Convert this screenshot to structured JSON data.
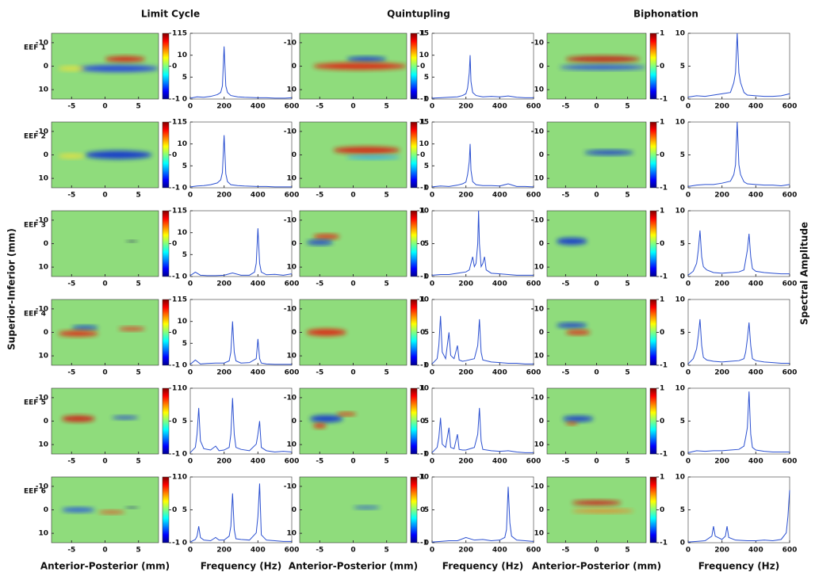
{
  "columns": [
    "Limit Cycle",
    "Quintupling",
    "Biphonation"
  ],
  "rows": [
    "EEF 1",
    "EEF 2",
    "EEF 3",
    "EEF 4",
    "EEF 5",
    "EEF 6"
  ],
  "labels": {
    "y": "Superior-Inferior (mm)",
    "right": "Spectral Amplitude",
    "heatmap_x": "Anterior-Posterior (mm)",
    "spectrum_x": "Frequency (Hz)"
  },
  "heatmap": {
    "xlim": [
      -8,
      8
    ],
    "xticks": [
      -5,
      0,
      5
    ],
    "ylim": [
      -14,
      14
    ],
    "yticks": [
      -10,
      0,
      10
    ],
    "colorbar_lim": [
      -1,
      1
    ],
    "colorbar_ticks": [
      -1,
      0,
      1
    ]
  },
  "chart_data": [
    {
      "type": "line",
      "color": "#2a4fd0",
      "xlim": [
        0,
        600
      ],
      "xticks": [
        0,
        200,
        400,
        600
      ],
      "ylim": [
        0,
        15
      ],
      "yticks": [
        0,
        5,
        10,
        15
      ],
      "x": [
        0,
        40,
        80,
        120,
        160,
        180,
        190,
        200,
        210,
        220,
        240,
        280,
        320,
        400,
        450,
        500,
        560,
        600
      ],
      "values": [
        0.2,
        0.5,
        0.4,
        0.6,
        1,
        1.5,
        3,
        12,
        3,
        1.5,
        0.8,
        0.5,
        0.4,
        0.3,
        0.3,
        0.2,
        0.2,
        0.3
      ]
    },
    {
      "type": "line",
      "color": "#2a4fd0",
      "xlim": [
        0,
        600
      ],
      "xticks": [
        0,
        200,
        400,
        600
      ],
      "ylim": [
        0,
        15
      ],
      "yticks": [
        0,
        5,
        10,
        15
      ],
      "x": [
        0,
        40,
        80,
        120,
        160,
        180,
        190,
        200,
        210,
        220,
        240,
        280,
        320,
        400,
        450,
        500,
        560,
        600
      ],
      "values": [
        0.2,
        0.4,
        0.5,
        0.7,
        1.1,
        1.8,
        3.5,
        12,
        3.2,
        1.4,
        0.7,
        0.5,
        0.4,
        0.3,
        0.3,
        0.2,
        0.2,
        0.2
      ]
    },
    {
      "type": "line",
      "color": "#2a4fd0",
      "xlim": [
        0,
        600
      ],
      "xticks": [
        0,
        200,
        400,
        600
      ],
      "ylim": [
        0,
        15
      ],
      "yticks": [
        0,
        5,
        10,
        15
      ],
      "x": [
        0,
        30,
        60,
        100,
        150,
        200,
        250,
        300,
        350,
        380,
        390,
        400,
        410,
        420,
        450,
        500,
        550,
        600
      ],
      "values": [
        0.2,
        1,
        0.3,
        0.2,
        0.2,
        0.3,
        0.8,
        0.3,
        0.3,
        1,
        3,
        11,
        3,
        1,
        0.4,
        0.5,
        0.3,
        0.6
      ]
    },
    {
      "type": "line",
      "color": "#2a4fd0",
      "xlim": [
        0,
        600
      ],
      "xticks": [
        0,
        200,
        400,
        600
      ],
      "ylim": [
        0,
        15
      ],
      "yticks": [
        0,
        5,
        10,
        15
      ],
      "x": [
        0,
        30,
        60,
        100,
        150,
        200,
        230,
        240,
        250,
        260,
        270,
        300,
        350,
        390,
        400,
        410,
        420,
        450,
        500,
        600
      ],
      "values": [
        0.2,
        1.2,
        0.3,
        0.4,
        0.5,
        0.5,
        1,
        3,
        10,
        3,
        1,
        0.5,
        0.6,
        1.5,
        6,
        1.5,
        0.5,
        0.3,
        0.2,
        0.2
      ]
    },
    {
      "type": "line",
      "color": "#2a4fd0",
      "xlim": [
        0,
        600
      ],
      "xticks": [
        0,
        200,
        400,
        600
      ],
      "ylim": [
        0,
        10
      ],
      "yticks": [
        0,
        5,
        10
      ],
      "x": [
        0,
        30,
        40,
        50,
        60,
        80,
        120,
        150,
        170,
        200,
        230,
        240,
        250,
        260,
        270,
        300,
        350,
        390,
        400,
        410,
        420,
        450,
        500,
        550,
        600
      ],
      "values": [
        0.2,
        1,
        3,
        7,
        2,
        0.8,
        0.6,
        1.2,
        0.5,
        0.6,
        1,
        3,
        8.5,
        3,
        1,
        0.7,
        0.5,
        1.5,
        3,
        5,
        1,
        0.5,
        0.3,
        0.4,
        0.3
      ]
    },
    {
      "type": "line",
      "color": "#2a4fd0",
      "xlim": [
        0,
        600
      ],
      "xticks": [
        0,
        200,
        400,
        600
      ],
      "ylim": [
        0,
        10
      ],
      "yticks": [
        0,
        5,
        10
      ],
      "x": [
        0,
        30,
        40,
        50,
        60,
        80,
        120,
        150,
        170,
        200,
        230,
        240,
        250,
        260,
        270,
        300,
        350,
        390,
        400,
        410,
        420,
        450,
        500,
        550,
        600
      ],
      "values": [
        0.1,
        0.5,
        1,
        2.5,
        0.8,
        0.4,
        0.3,
        0.8,
        0.4,
        0.4,
        1,
        2.5,
        7.5,
        2,
        0.6,
        0.5,
        0.4,
        1.5,
        4,
        9,
        1.2,
        0.4,
        0.3,
        0.2,
        0.2
      ]
    },
    {
      "type": "line",
      "color": "#2a4fd0",
      "xlim": [
        0,
        600
      ],
      "xticks": [
        0,
        200,
        400,
        600
      ],
      "ylim": [
        0,
        15
      ],
      "yticks": [
        0,
        5,
        10,
        15
      ],
      "x": [
        0,
        50,
        100,
        150,
        180,
        200,
        210,
        220,
        225,
        230,
        240,
        260,
        300,
        350,
        400,
        450,
        500,
        550,
        600
      ],
      "values": [
        0.2,
        0.3,
        0.4,
        0.5,
        0.8,
        1.2,
        2.5,
        6,
        10,
        4,
        1.5,
        0.8,
        0.5,
        0.6,
        0.5,
        0.7,
        0.4,
        0.3,
        0.3
      ]
    },
    {
      "type": "line",
      "color": "#2a4fd0",
      "xlim": [
        0,
        600
      ],
      "xticks": [
        0,
        200,
        400,
        600
      ],
      "ylim": [
        0,
        15
      ],
      "yticks": [
        0,
        5,
        10,
        15
      ],
      "x": [
        0,
        50,
        100,
        150,
        180,
        200,
        210,
        220,
        225,
        230,
        240,
        260,
        300,
        350,
        400,
        450,
        500,
        550,
        600
      ],
      "values": [
        0.2,
        0.4,
        0.3,
        0.6,
        0.9,
        1.3,
        3,
        6,
        10,
        4,
        1.4,
        0.7,
        0.5,
        0.5,
        0.4,
        0.9,
        0.3,
        0.3,
        0.2
      ]
    },
    {
      "type": "line",
      "color": "#2a4fd0",
      "xlim": [
        0,
        600
      ],
      "xticks": [
        0,
        200,
        400,
        600
      ],
      "ylim": [
        0,
        10
      ],
      "yticks": [
        0,
        5,
        10
      ],
      "x": [
        0,
        50,
        100,
        150,
        200,
        220,
        240,
        250,
        260,
        270,
        275,
        280,
        290,
        300,
        310,
        320,
        350,
        400,
        450,
        500,
        600
      ],
      "values": [
        0.2,
        0.3,
        0.3,
        0.5,
        0.7,
        1,
        3,
        1.5,
        2,
        5,
        10,
        5,
        1.5,
        2,
        3,
        1,
        0.5,
        0.4,
        0.3,
        0.2,
        0.2
      ]
    },
    {
      "type": "line",
      "color": "#2a4fd0",
      "xlim": [
        0,
        600
      ],
      "xticks": [
        0,
        200,
        400,
        600
      ],
      "ylim": [
        0,
        10
      ],
      "yticks": [
        0,
        5,
        10
      ],
      "x": [
        0,
        30,
        40,
        50,
        60,
        80,
        100,
        110,
        130,
        150,
        160,
        180,
        200,
        250,
        270,
        280,
        290,
        300,
        350,
        400,
        450,
        500,
        550,
        600
      ],
      "values": [
        0.2,
        1,
        3,
        7.5,
        2,
        1,
        5,
        1.5,
        1,
        3,
        0.8,
        0.6,
        0.7,
        1,
        3,
        7,
        2,
        0.8,
        0.5,
        0.4,
        0.3,
        0.3,
        0.2,
        0.2
      ]
    },
    {
      "type": "line",
      "color": "#2a4fd0",
      "xlim": [
        0,
        600
      ],
      "xticks": [
        0,
        200,
        400,
        600
      ],
      "ylim": [
        0,
        10
      ],
      "yticks": [
        0,
        5,
        10
      ],
      "x": [
        0,
        30,
        40,
        50,
        60,
        80,
        100,
        110,
        130,
        150,
        160,
        180,
        200,
        250,
        270,
        280,
        290,
        300,
        350,
        400,
        450,
        500,
        550,
        600
      ],
      "values": [
        0.2,
        1,
        2.5,
        5.5,
        1.5,
        1,
        4,
        1,
        0.8,
        3,
        0.7,
        0.6,
        0.6,
        1,
        3,
        7,
        2,
        0.7,
        0.5,
        0.4,
        0.5,
        0.3,
        0.2,
        0.2
      ]
    },
    {
      "type": "line",
      "color": "#2a4fd0",
      "xlim": [
        0,
        600
      ],
      "xticks": [
        0,
        200,
        400,
        600
      ],
      "ylim": [
        0,
        10
      ],
      "yticks": [
        0,
        5,
        10
      ],
      "x": [
        0,
        50,
        100,
        150,
        200,
        250,
        300,
        350,
        400,
        430,
        440,
        450,
        460,
        470,
        500,
        550,
        600
      ],
      "values": [
        0.1,
        0.2,
        0.3,
        0.3,
        0.8,
        0.4,
        0.5,
        0.3,
        0.4,
        0.8,
        2,
        8.5,
        3,
        1,
        0.4,
        0.3,
        0.2
      ]
    },
    {
      "type": "line",
      "color": "#2a4fd0",
      "xlim": [
        0,
        600
      ],
      "xticks": [
        0,
        200,
        400,
        600
      ],
      "ylim": [
        0,
        10
      ],
      "yticks": [
        0,
        5,
        10
      ],
      "x": [
        0,
        50,
        100,
        150,
        200,
        250,
        270,
        280,
        290,
        300,
        310,
        330,
        350,
        400,
        450,
        500,
        550,
        600
      ],
      "values": [
        0.3,
        0.5,
        0.4,
        0.6,
        0.8,
        1,
        2.5,
        4,
        10,
        4,
        2.5,
        1,
        0.6,
        0.5,
        0.4,
        0.4,
        0.5,
        0.8
      ]
    },
    {
      "type": "line",
      "color": "#2a4fd0",
      "xlim": [
        0,
        600
      ],
      "xticks": [
        0,
        200,
        400,
        600
      ],
      "ylim": [
        0,
        10
      ],
      "yticks": [
        0,
        5,
        10
      ],
      "x": [
        0,
        50,
        100,
        150,
        200,
        250,
        270,
        280,
        290,
        300,
        310,
        330,
        350,
        400,
        450,
        500,
        550,
        600
      ],
      "values": [
        0.2,
        0.4,
        0.5,
        0.5,
        0.7,
        1,
        2,
        3.5,
        10,
        3.5,
        2,
        0.9,
        0.6,
        0.5,
        0.4,
        0.4,
        0.3,
        0.5
      ]
    },
    {
      "type": "line",
      "color": "#2a4fd0",
      "xlim": [
        0,
        600
      ],
      "xticks": [
        0,
        200,
        400,
        600
      ],
      "ylim": [
        0,
        10
      ],
      "yticks": [
        0,
        5,
        10
      ],
      "x": [
        0,
        30,
        50,
        60,
        70,
        80,
        90,
        110,
        150,
        200,
        250,
        300,
        330,
        340,
        350,
        360,
        370,
        380,
        400,
        450,
        500,
        550,
        600
      ],
      "values": [
        0.2,
        0.8,
        2,
        4,
        7,
        3,
        1.5,
        1,
        0.6,
        0.5,
        0.6,
        0.7,
        1,
        2.5,
        4,
        6.5,
        3,
        1.2,
        0.8,
        0.6,
        0.5,
        0.4,
        0.4
      ]
    },
    {
      "type": "line",
      "color": "#2a4fd0",
      "xlim": [
        0,
        600
      ],
      "xticks": [
        0,
        200,
        400,
        600
      ],
      "ylim": [
        0,
        10
      ],
      "yticks": [
        0,
        5,
        10
      ],
      "x": [
        0,
        30,
        50,
        60,
        70,
        80,
        90,
        110,
        150,
        200,
        250,
        300,
        330,
        340,
        350,
        360,
        370,
        380,
        400,
        450,
        500,
        550,
        600
      ],
      "values": [
        0.2,
        1,
        2.5,
        4.5,
        7,
        3,
        1.2,
        0.8,
        0.6,
        0.5,
        0.6,
        0.7,
        1,
        2,
        4,
        6.5,
        3,
        1,
        0.7,
        0.5,
        0.4,
        0.3,
        0.3
      ]
    },
    {
      "type": "line",
      "color": "#2a4fd0",
      "xlim": [
        0,
        600
      ],
      "xticks": [
        0,
        200,
        400,
        600
      ],
      "ylim": [
        0,
        10
      ],
      "yticks": [
        0,
        5,
        10
      ],
      "x": [
        0,
        50,
        100,
        150,
        200,
        250,
        300,
        330,
        340,
        350,
        360,
        370,
        380,
        400,
        450,
        500,
        550,
        600
      ],
      "values": [
        0.2,
        0.5,
        0.4,
        0.5,
        0.5,
        0.6,
        0.7,
        1.2,
        2.5,
        4,
        9.5,
        3,
        1,
        0.6,
        0.4,
        0.3,
        0.3,
        0.3
      ]
    },
    {
      "type": "line",
      "color": "#2a4fd0",
      "xlim": [
        0,
        600
      ],
      "xticks": [
        0,
        200,
        400,
        600
      ],
      "ylim": [
        0,
        10
      ],
      "yticks": [
        0,
        5,
        10
      ],
      "x": [
        0,
        50,
        100,
        140,
        150,
        160,
        200,
        220,
        230,
        240,
        280,
        350,
        400,
        450,
        500,
        550,
        580,
        590,
        600
      ],
      "values": [
        0.1,
        0.2,
        0.3,
        1,
        2.5,
        1,
        0.5,
        1,
        2.5,
        0.8,
        0.4,
        0.3,
        0.3,
        0.4,
        0.3,
        0.5,
        1.5,
        4,
        8
      ]
    }
  ]
}
